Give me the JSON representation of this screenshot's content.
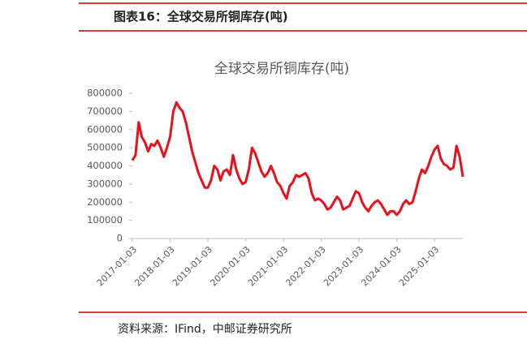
{
  "header": {
    "title": "图表16：全球交易所铜库存(吨)"
  },
  "chart_data": {
    "type": "line",
    "title": "全球交易所铜库存(吨)",
    "categories": [
      "2017-01-03",
      null,
      null,
      null,
      null,
      null,
      null,
      null,
      null,
      null,
      null,
      null,
      "2018-01-03",
      null,
      null,
      null,
      null,
      null,
      null,
      null,
      null,
      null,
      null,
      null,
      "2019-01-03",
      null,
      null,
      null,
      null,
      null,
      null,
      null,
      null,
      null,
      null,
      null,
      "2020-01-03",
      null,
      null,
      null,
      null,
      null,
      null,
      null,
      null,
      null,
      null,
      null,
      "2021-01-03",
      null,
      null,
      null,
      null,
      null,
      null,
      null,
      null,
      null,
      null,
      null,
      "2022-01-03",
      null,
      null,
      null,
      null,
      null,
      null,
      null,
      null,
      null,
      null,
      null,
      "2023-01-03",
      null,
      null,
      null,
      null,
      null,
      null,
      null,
      null,
      null,
      null,
      null,
      "2024-01-03",
      null,
      null,
      null,
      null,
      null,
      null,
      null,
      null,
      null,
      null,
      null,
      "2025-01-03",
      null,
      null,
      null,
      null,
      null,
      null,
      null,
      null,
      null
    ],
    "series": [
      {
        "name": "全球交易所铜库存",
        "color": "#e8101a",
        "values": [
          430000,
          460000,
          640000,
          560000,
          530000,
          480000,
          520000,
          510000,
          540000,
          500000,
          450000,
          500000,
          560000,
          700000,
          750000,
          720000,
          700000,
          640000,
          560000,
          480000,
          420000,
          360000,
          320000,
          280000,
          280000,
          320000,
          400000,
          380000,
          320000,
          370000,
          380000,
          350000,
          460000,
          380000,
          330000,
          300000,
          310000,
          380000,
          500000,
          470000,
          420000,
          370000,
          340000,
          360000,
          400000,
          360000,
          310000,
          290000,
          250000,
          220000,
          290000,
          310000,
          350000,
          340000,
          350000,
          360000,
          330000,
          250000,
          210000,
          220000,
          210000,
          190000,
          160000,
          170000,
          200000,
          230000,
          210000,
          160000,
          170000,
          180000,
          220000,
          260000,
          250000,
          200000,
          170000,
          150000,
          180000,
          200000,
          210000,
          190000,
          160000,
          130000,
          150000,
          150000,
          130000,
          150000,
          190000,
          210000,
          190000,
          200000,
          260000,
          330000,
          380000,
          360000,
          400000,
          450000,
          490000,
          510000,
          440000,
          410000,
          400000,
          380000,
          390000,
          510000,
          450000,
          340000
        ]
      }
    ],
    "ylim": [
      0,
      800000
    ],
    "yticks": [
      0,
      100000,
      200000,
      300000,
      400000,
      500000,
      600000,
      700000,
      800000
    ]
  },
  "footer": {
    "source": "资料来源：IFind，中邮证券研究所"
  }
}
